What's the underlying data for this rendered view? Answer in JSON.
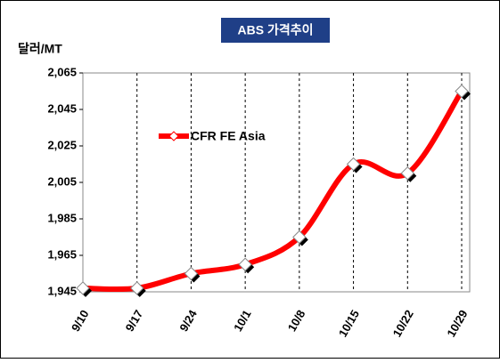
{
  "chart_data": {
    "type": "line",
    "title": "ABS 가격추이",
    "y_label": "달러/MT",
    "categories": [
      "9/10",
      "9/17",
      "9/24",
      "10/1",
      "10/8",
      "10/15",
      "10/22",
      "10/29"
    ],
    "series": [
      {
        "name": "CFR FE Asia",
        "color": "#ff0000",
        "values": [
          1947,
          1947,
          1955,
          1960,
          1975,
          2015,
          2010,
          2055
        ]
      }
    ],
    "ylim": [
      1945,
      2065
    ],
    "yticks": [
      {
        "value": 1945,
        "label": "1,945"
      },
      {
        "value": 1965,
        "label": "1,965"
      },
      {
        "value": 1985,
        "label": "1,985"
      },
      {
        "value": 2005,
        "label": "2,005"
      },
      {
        "value": 2025,
        "label": "2,025"
      },
      {
        "value": 2045,
        "label": "2,045"
      },
      {
        "value": 2065,
        "label": "2,065"
      }
    ],
    "grid": true,
    "legend": "top-left"
  }
}
